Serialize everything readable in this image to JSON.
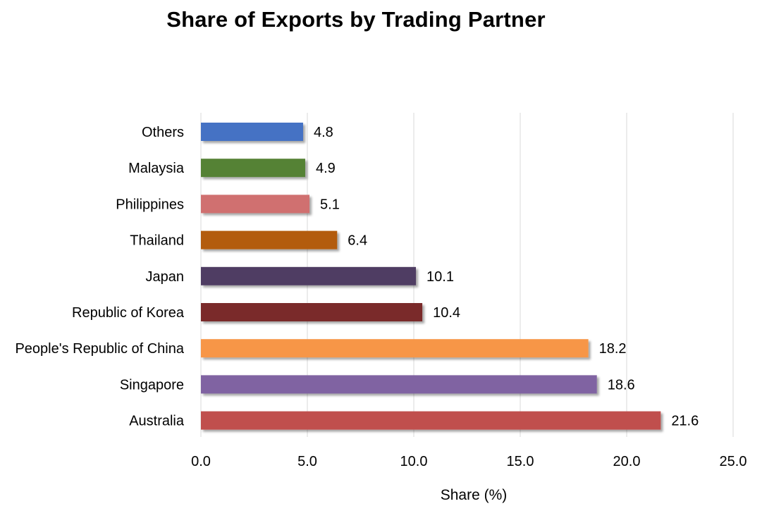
{
  "chart_data": {
    "type": "bar",
    "orientation": "horizontal",
    "title": "Share of Exports by Trading Partner",
    "xlabel": "Share (%)",
    "ylabel": "",
    "xlim": [
      0,
      25
    ],
    "x_ticks": [
      "0.0",
      "5.0",
      "10.0",
      "15.0",
      "20.0",
      "25.0"
    ],
    "grid": true,
    "legend": "none",
    "categories": [
      "Others",
      "Malaysia",
      "Philippines",
      "Thailand",
      "Japan",
      "Republic of Korea",
      "People's Republic of China",
      "Singapore",
      "Australia"
    ],
    "values": [
      4.8,
      4.9,
      5.1,
      6.4,
      10.1,
      10.4,
      18.2,
      18.6,
      21.6
    ],
    "data_labels": [
      "4.8",
      "4.9",
      "5.1",
      "6.4",
      "10.1",
      "10.4",
      "18.2",
      "18.6",
      "21.6"
    ],
    "colors": [
      "#4472C4",
      "#548235",
      "#D07070",
      "#B35C08",
      "#4F3D63",
      "#7A2A2A",
      "#F79646",
      "#8064A2",
      "#C0504D"
    ]
  }
}
